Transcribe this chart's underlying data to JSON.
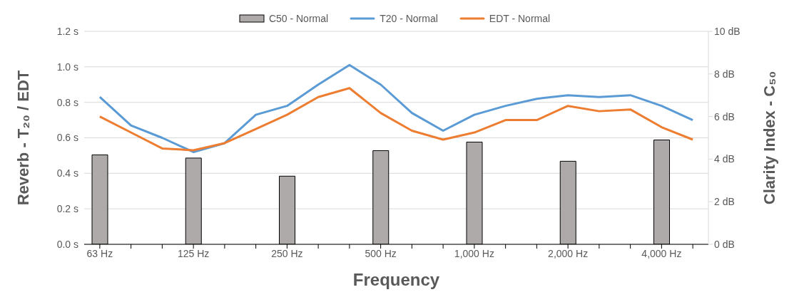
{
  "chart_data": {
    "type": "line",
    "xlabel": "Frequency",
    "ylabel": "Reverb - T₂₀ / EDT",
    "y2label": "Clarity Index - C₅₀",
    "categories": [
      "63 Hz",
      null,
      null,
      "125 Hz",
      null,
      null,
      "250 Hz",
      null,
      null,
      "500 Hz",
      null,
      null,
      "1,000 Hz",
      null,
      null,
      "2,000 Hz",
      null,
      null,
      "4,000 Hz",
      null
    ],
    "series": [
      {
        "name": "C50 - Normal",
        "type": "bar",
        "axis": "y2",
        "color": "#aeaaaa",
        "values": [
          4.2,
          null,
          null,
          4.05,
          null,
          null,
          3.2,
          null,
          null,
          4.4,
          null,
          null,
          4.8,
          null,
          null,
          3.9,
          null,
          null,
          4.9,
          null
        ]
      },
      {
        "name": "T20 - Normal",
        "color": "#5b9bd5",
        "values": [
          0.83,
          0.67,
          0.6,
          0.52,
          0.57,
          0.73,
          0.78,
          0.9,
          1.01,
          0.9,
          0.74,
          0.64,
          0.73,
          0.78,
          0.82,
          0.84,
          0.83,
          0.84,
          0.78,
          0.7
        ]
      },
      {
        "name": "EDT - Normal",
        "color": "#ed7d31",
        "values": [
          0.72,
          0.63,
          0.54,
          0.53,
          0.57,
          0.65,
          0.73,
          0.83,
          0.88,
          0.74,
          0.64,
          0.59,
          0.63,
          0.7,
          0.7,
          0.78,
          0.75,
          0.76,
          0.66,
          0.59
        ]
      }
    ],
    "ylim": [
      0,
      1.2
    ],
    "yticks": [
      {
        "value": 0,
        "label": "0.0 s"
      },
      {
        "value": 0.2,
        "label": "0.2 s"
      },
      {
        "value": 0.4,
        "label": "0.4 s"
      },
      {
        "value": 0.6,
        "label": "0.6 s"
      },
      {
        "value": 0.8,
        "label": "0.8 s"
      },
      {
        "value": 1,
        "label": "1.0 s"
      },
      {
        "value": 1.2,
        "label": "1.2 s"
      }
    ],
    "y2lim": [
      0,
      10
    ],
    "y2ticks": [
      {
        "value": 0,
        "label": "0 dB"
      },
      {
        "value": 2,
        "label": "2 dB"
      },
      {
        "value": 4,
        "label": "4 dB"
      },
      {
        "value": 6,
        "label": "6 dB"
      },
      {
        "value": 8,
        "label": "8 dB"
      },
      {
        "value": 10,
        "label": "10 dB"
      }
    ],
    "grid": "y",
    "legend": "top",
    "marker": "none",
    "line_style": "solid"
  }
}
